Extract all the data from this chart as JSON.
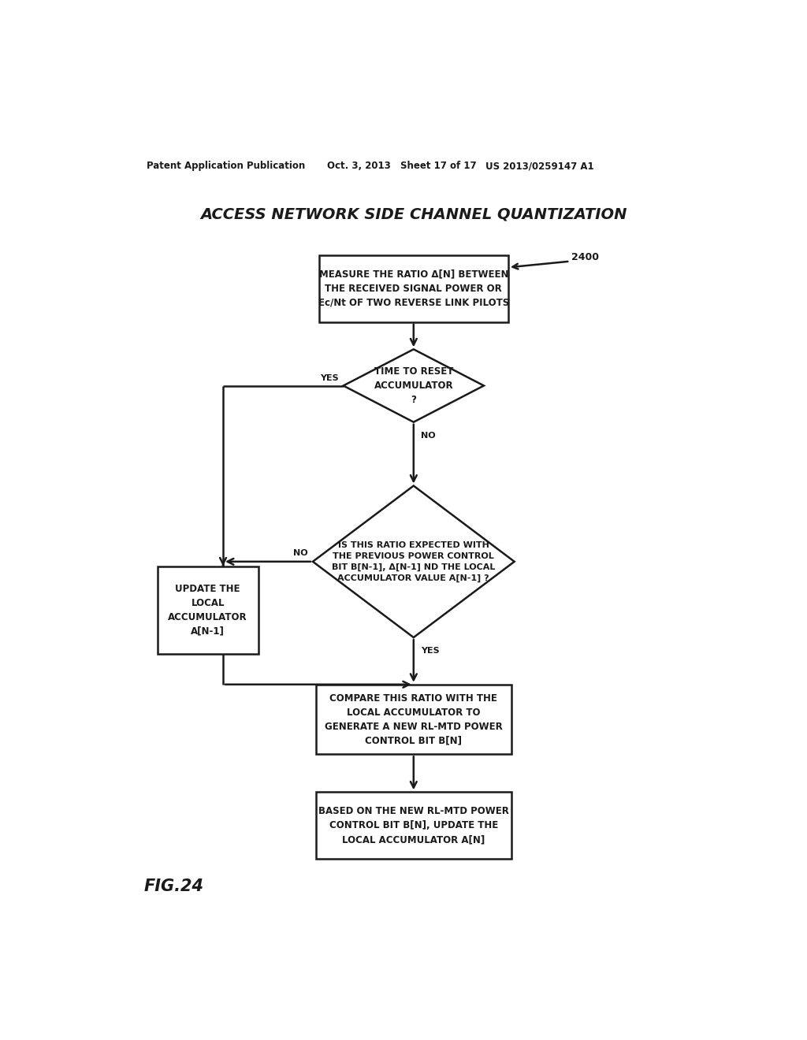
{
  "title": "ACCESS NETWORK SIDE CHANNEL QUANTIZATION",
  "patent_line1": "Patent Application Publication",
  "patent_line2": "Oct. 3, 2013",
  "patent_line3": "Sheet 17 of 17",
  "patent_line4": "US 2013/0259147 A1",
  "fig_label": "FIG.24",
  "diagram_label": "2400",
  "background_color": "#ffffff",
  "line_color": "#1a1a1a",
  "box1_text": "MEASURE THE RATIO Δ[N] BETWEEN\nTHE RECEIVED SIGNAL POWER OR\nEc/Nt OF TWO REVERSE LINK PILOTS",
  "diamond1_text": "TIME TO RESET\nACCUMULATOR\n?",
  "diamond2_text": "IS THIS RATIO EXPECTED WITH\nTHE PREVIOUS POWER CONTROL\nBIT B[N-1], Δ[N-1] ND THE LOCAL\nACCUMULATOR VALUE A[N-1] ?",
  "box2_text": "UPDATE THE\nLOCAL\nACCUMULATOR\nA[N-1]",
  "box3_text": "COMPARE THIS RATIO WITH THE\nLOCAL ACCUMULATOR TO\nGENERATE A NEW RL-MTD POWER\nCONTROL BIT B[N]",
  "box4_text": "BASED ON THE NEW RL-MTD POWER\nCONTROL BIT B[N], UPDATE THE\nLOCAL ACCUMULATOR A[N]",
  "yes1_label": "YES",
  "no1_label": "NO",
  "no2_label": "NO",
  "yes2_label": "YES"
}
